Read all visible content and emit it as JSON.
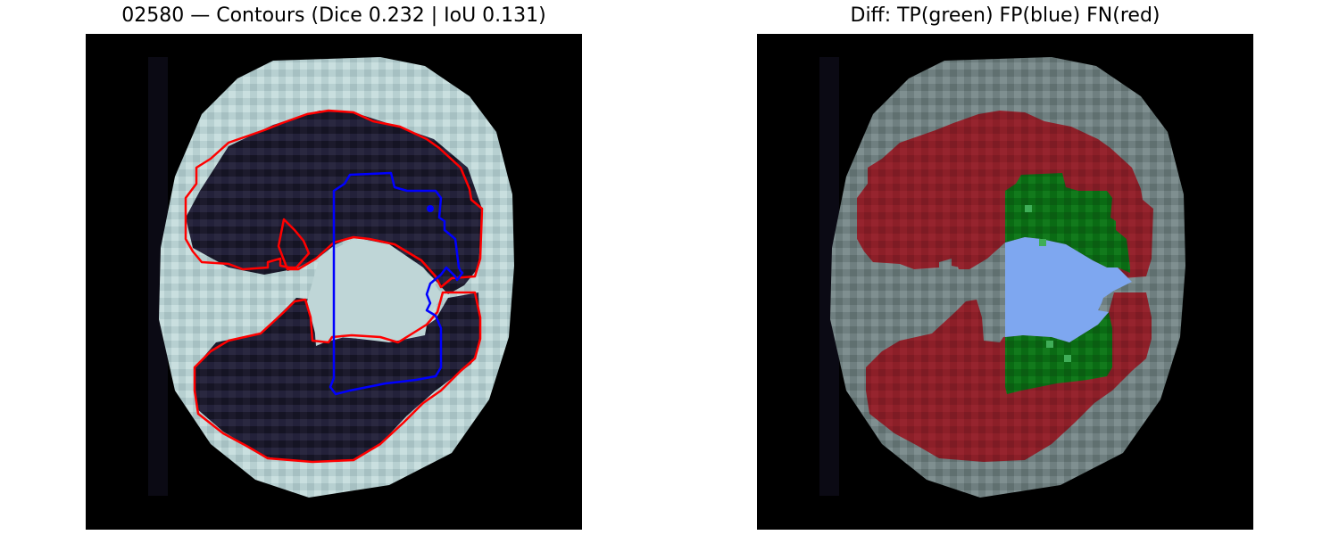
{
  "left_panel": {
    "title": "02580 — Contours (Dice 0.232 | IoU 0.131)"
  },
  "right_panel": {
    "title": "Diff: TP(green) FP(blue) FN(red)"
  },
  "colors": {
    "ground_truth_contour": "#ff0000",
    "prediction_contour": "#0000ff",
    "true_positive": "#0a6b14",
    "false_positive": "#7ea7f0",
    "false_negative": "#8c1f28"
  }
}
